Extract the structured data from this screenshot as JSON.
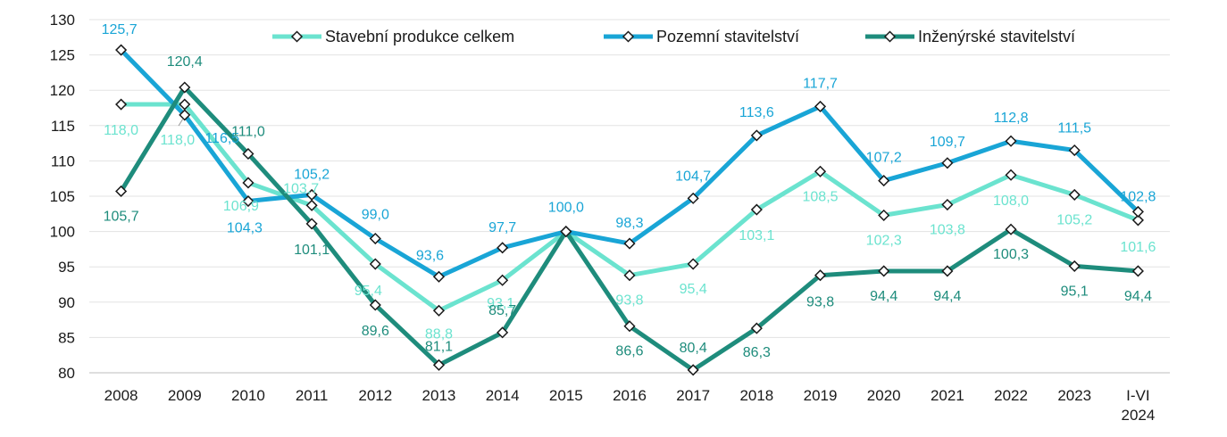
{
  "chart_data": {
    "type": "line",
    "title": "",
    "xlabel": "",
    "ylabel": "",
    "categories": [
      "2008",
      "2009",
      "2010",
      "2011",
      "2012",
      "2013",
      "2014",
      "2015",
      "2016",
      "2017",
      "2018",
      "2019",
      "2020",
      "2021",
      "2022",
      "2023",
      "I-VI 2024"
    ],
    "ylim": [
      80,
      130
    ],
    "yticks": [
      80,
      85,
      90,
      95,
      100,
      105,
      110,
      115,
      120,
      125,
      130
    ],
    "grid": true,
    "legend_position": "top",
    "series": [
      {
        "name": "Stavební produkce celkem",
        "color": "#6be3cf",
        "values": [
          118.0,
          118.0,
          106.9,
          103.7,
          95.4,
          88.8,
          93.1,
          100.0,
          93.8,
          95.4,
          103.1,
          108.5,
          102.3,
          103.8,
          108.0,
          105.2,
          101.6
        ],
        "labels": [
          "118,0",
          "118,0",
          "106,9",
          "103,7",
          "95,4",
          "88,8",
          "93,1",
          "",
          "93,8",
          "95,4",
          "103,1",
          "108,5",
          "102,3",
          "103,8",
          "108,0",
          "105,2",
          "101,6"
        ]
      },
      {
        "name": "Pozemní stavitelství",
        "color": "#19a5d6",
        "values": [
          125.7,
          116.5,
          104.3,
          105.2,
          99.0,
          93.6,
          97.7,
          100.0,
          98.3,
          104.7,
          113.6,
          117.7,
          107.2,
          109.7,
          112.8,
          111.5,
          102.8
        ],
        "labels": [
          "125,7",
          "116,5",
          "104,3",
          "105,2",
          "99,0",
          "93,6",
          "97,7",
          "100,0",
          "98,3",
          "104,7",
          "113,6",
          "117,7",
          "107,2",
          "109,7",
          "112,8",
          "111,5",
          "102,8"
        ]
      },
      {
        "name": "Inženýrské stavitelství",
        "color": "#1e8c7c",
        "values": [
          105.7,
          120.4,
          111.0,
          101.1,
          89.6,
          81.1,
          85.7,
          100.0,
          86.6,
          80.4,
          86.3,
          93.8,
          94.4,
          94.4,
          100.3,
          95.1,
          94.4
        ],
        "labels": [
          "105,7",
          "120,4",
          "111,0",
          "101,1",
          "89,6",
          "81,1",
          "85,7",
          "",
          "86,6",
          "80,4",
          "86,3",
          "93,8",
          "94,4",
          "94,4",
          "100,3",
          "95,1",
          "94,4"
        ]
      }
    ]
  }
}
